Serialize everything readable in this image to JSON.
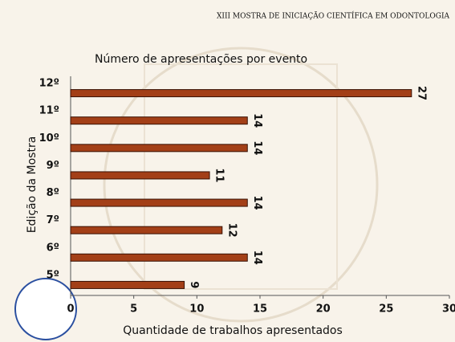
{
  "header": "XIII MOSTRA DE INICIAÇÃO CIENTÍFICA EM ODONTOLOGIA",
  "chart_data": {
    "type": "hbar",
    "title": "Número de apresentações por evento",
    "categories": [
      "5º",
      "6º",
      "7º",
      "8º",
      "9º",
      "10º",
      "11º",
      "12º"
    ],
    "values": [
      9,
      14,
      12,
      14,
      11,
      14,
      14,
      27
    ],
    "color": "#a33f17",
    "xlim": [
      0,
      30
    ],
    "xticks": [
      0,
      5,
      10,
      15,
      20,
      25,
      30
    ],
    "x_label": "Quantidade de trabalhos apresentados",
    "y_label": "Edição da Mostra"
  }
}
